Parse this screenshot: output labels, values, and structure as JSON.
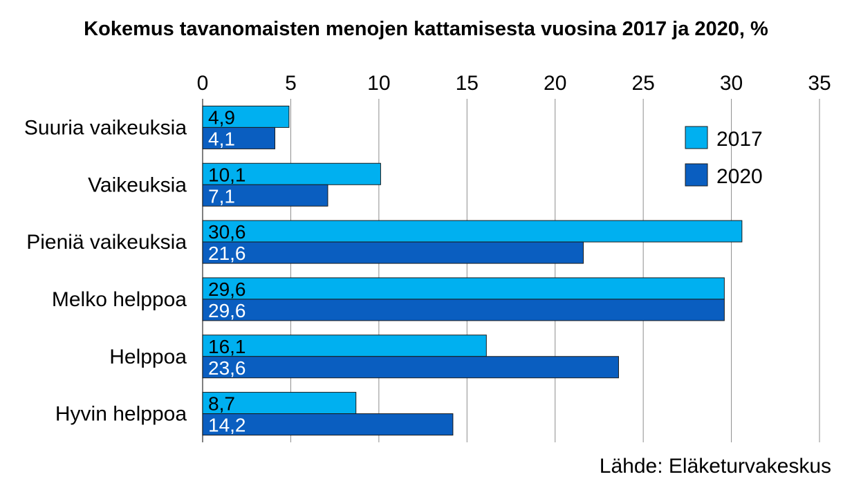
{
  "source": "Lähde: Eläketurvakeskus",
  "chart_data": {
    "type": "bar",
    "orientation": "horizontal",
    "title": "Kokemus tavanomaisten menojen kattamisesta vuosina 2017 ja 2020, %",
    "xlabel": "",
    "ylabel": "",
    "xlim": [
      0,
      35
    ],
    "ticks": [
      "0",
      "5",
      "10",
      "15",
      "20",
      "25",
      "30",
      "35"
    ],
    "grid": true,
    "legend_position": "right",
    "categories": [
      "Suuria vaikeuksia",
      "Vaikeuksia",
      "Pieniä vaikeuksia",
      "Melko helppoa",
      "Helppoa",
      "Hyvin helppoa"
    ],
    "series": [
      {
        "name": "2017",
        "color": "#00b0f0",
        "values": [
          4.9,
          10.1,
          30.6,
          29.6,
          16.1,
          8.7
        ],
        "labels": [
          "4,9",
          "10,1",
          "30,6",
          "29,6",
          "16,1",
          "8,7"
        ],
        "label_color": "#000000"
      },
      {
        "name": "2020",
        "color": "#0a5ec0",
        "values": [
          4.1,
          7.1,
          21.6,
          29.6,
          23.6,
          14.2
        ],
        "labels": [
          "4,1",
          "7,1",
          "21,6",
          "29,6",
          "23,6",
          "14,2"
        ],
        "label_color": "#ffffff"
      }
    ]
  }
}
